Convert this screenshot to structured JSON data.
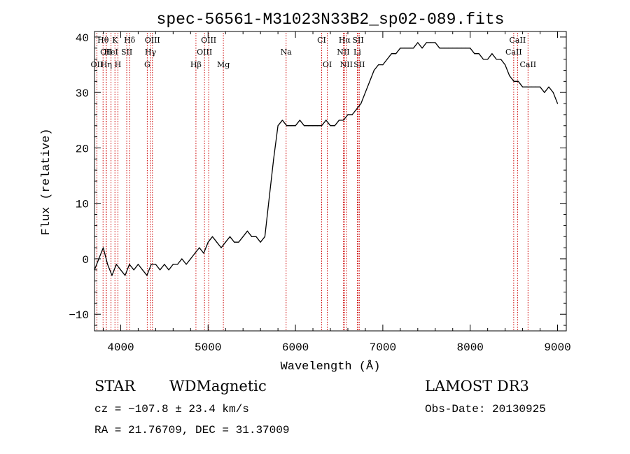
{
  "chart_data": {
    "type": "line",
    "title": "spec-56561-M31023N33B2_sp02-089.fits",
    "xlabel": "Wavelength (Å)",
    "ylabel": "Flux (relative)",
    "xlim": [
      3700,
      9100
    ],
    "ylim": [
      -13,
      41
    ],
    "x_ticks": [
      4000,
      5000,
      6000,
      7000,
      8000,
      9000
    ],
    "y_ticks": [
      -10,
      0,
      10,
      20,
      30,
      40
    ],
    "grid": false,
    "series": [
      {
        "color": "#000000",
        "x": [
          3700,
          3750,
          3800,
          3850,
          3900,
          3950,
          4000,
          4050,
          4100,
          4150,
          4200,
          4250,
          4300,
          4350,
          4400,
          4450,
          4500,
          4550,
          4600,
          4650,
          4700,
          4750,
          4800,
          4850,
          4900,
          4950,
          5000,
          5050,
          5100,
          5150,
          5200,
          5250,
          5300,
          5350,
          5400,
          5450,
          5500,
          5550,
          5600,
          5650,
          5700,
          5750,
          5800,
          5850,
          5900,
          5950,
          6000,
          6050,
          6100,
          6150,
          6200,
          6250,
          6300,
          6350,
          6400,
          6450,
          6500,
          6550,
          6600,
          6650,
          6700,
          6750,
          6800,
          6850,
          6900,
          6950,
          7000,
          7050,
          7100,
          7150,
          7200,
          7250,
          7300,
          7350,
          7400,
          7450,
          7500,
          7550,
          7600,
          7650,
          7700,
          7750,
          7800,
          7850,
          7900,
          7950,
          8000,
          8050,
          8100,
          8150,
          8200,
          8250,
          8300,
          8350,
          8400,
          8450,
          8500,
          8550,
          8600,
          8650,
          8700,
          8750,
          8800,
          8850,
          8900,
          8950,
          9000
        ],
        "y": [
          -2,
          0,
          2,
          -1,
          -3,
          -1,
          -2,
          -3,
          -1,
          -2,
          -1,
          -2,
          -3,
          -1,
          -1,
          -2,
          -1,
          -2,
          -1,
          -1,
          0,
          -1,
          0,
          1,
          2,
          1,
          3,
          4,
          3,
          2,
          3,
          4,
          3,
          3,
          4,
          5,
          4,
          4,
          3,
          4,
          11,
          18,
          24,
          25,
          24,
          24,
          24,
          25,
          24,
          24,
          24,
          24,
          24,
          25,
          24,
          24,
          25,
          25,
          26,
          26,
          27,
          28,
          30,
          32,
          34,
          35,
          35,
          36,
          37,
          37,
          38,
          38,
          38,
          38,
          39,
          38,
          39,
          39,
          39,
          38,
          38,
          38,
          38,
          38,
          38,
          38,
          38,
          37,
          37,
          36,
          36,
          37,
          36,
          36,
          35,
          33,
          32,
          32,
          31,
          31,
          31,
          31,
          31,
          30,
          31,
          30,
          28
        ]
      }
    ],
    "line_markers": [
      {
        "label": "Hθ",
        "x": 3798,
        "row": 1
      },
      {
        "label": "K",
        "x": 3934,
        "row": 1
      },
      {
        "label": "Hδ",
        "x": 4102,
        "row": 1
      },
      {
        "label": "OIII",
        "x": 4363,
        "row": 1
      },
      {
        "label": "OIII",
        "x": 5007,
        "row": 1
      },
      {
        "label": "CI",
        "x": 6300,
        "row": 1
      },
      {
        "label": "Hα",
        "x": 6563,
        "row": 1
      },
      {
        "label": "SII",
        "x": 6717,
        "row": 1
      },
      {
        "label": "CaII",
        "x": 8542,
        "row": 1
      },
      {
        "label": "CII",
        "x": 3834,
        "row": 2
      },
      {
        "label": "HeI",
        "x": 3889,
        "row": 2
      },
      {
        "label": "SII",
        "x": 4069,
        "row": 2
      },
      {
        "label": "Hγ",
        "x": 4341,
        "row": 2
      },
      {
        "label": "OIII",
        "x": 4959,
        "row": 2
      },
      {
        "label": "Na",
        "x": 5893,
        "row": 2
      },
      {
        "label": "NII",
        "x": 6548,
        "row": 2
      },
      {
        "label": "Li",
        "x": 6708,
        "row": 2
      },
      {
        "label": "CaII",
        "x": 8498,
        "row": 2
      },
      {
        "label": "OII",
        "x": 3727,
        "row": 3
      },
      {
        "label": "Hη",
        "x": 3835,
        "row": 3
      },
      {
        "label": "H",
        "x": 3968,
        "row": 3
      },
      {
        "label": "G",
        "x": 4304,
        "row": 3
      },
      {
        "label": "Hβ",
        "x": 4861,
        "row": 3
      },
      {
        "label": "Mg",
        "x": 5175,
        "row": 3
      },
      {
        "label": "OI",
        "x": 6364,
        "row": 3
      },
      {
        "label": "NII",
        "x": 6583,
        "row": 3
      },
      {
        "label": "SII",
        "x": 6731,
        "row": 3
      },
      {
        "label": "CaII",
        "x": 8662,
        "row": 3
      }
    ],
    "marker_color": "#cc0000"
  },
  "info": {
    "class_label": "STAR",
    "subclass_label": "WDMagnetic",
    "survey_label": "LAMOST DR3",
    "redshift_line": "cz = −107.8 ± 23.4 km/s",
    "obs_date_line": "Obs-Date: 20130925",
    "coords_line": "RA =  21.76709, DEC =  31.37009"
  }
}
